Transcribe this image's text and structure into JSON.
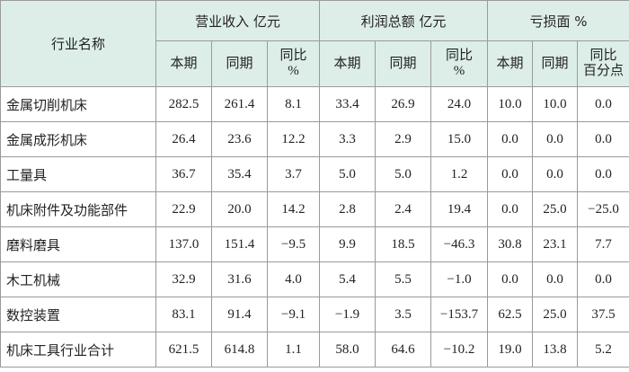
{
  "table": {
    "corner": "行业名称",
    "groups": [
      "营业收入 亿元",
      "利润总额 亿元",
      "亏损面 %"
    ],
    "subheaders": [
      [
        [
          "本期"
        ],
        [
          "同期"
        ],
        [
          "同比",
          "%"
        ]
      ],
      [
        [
          "本期"
        ],
        [
          "同期"
        ],
        [
          "同比",
          "%"
        ]
      ],
      [
        [
          "本期"
        ],
        [
          "同期"
        ],
        [
          "同比",
          "百分点"
        ]
      ]
    ],
    "rows": [
      [
        "金属切削机床",
        "282.5",
        "261.4",
        "8.1",
        "33.4",
        "26.9",
        "24.0",
        "10.0",
        "10.0",
        "0.0"
      ],
      [
        "金属成形机床",
        "26.4",
        "23.6",
        "12.2",
        "3.3",
        "2.9",
        "15.0",
        "0.0",
        "0.0",
        "0.0"
      ],
      [
        "工量具",
        "36.7",
        "35.4",
        "3.7",
        "5.0",
        "5.0",
        "1.2",
        "0.0",
        "0.0",
        "0.0"
      ],
      [
        "机床附件及功能部件",
        "22.9",
        "20.0",
        "14.2",
        "2.8",
        "2.4",
        "19.4",
        "0.0",
        "25.0",
        "−25.0"
      ],
      [
        "磨料磨具",
        "137.0",
        "151.4",
        "−9.5",
        "9.9",
        "18.5",
        "−46.3",
        "30.8",
        "23.1",
        "7.7"
      ],
      [
        "木工机械",
        "32.9",
        "31.6",
        "4.0",
        "5.4",
        "5.5",
        "−1.0",
        "0.0",
        "0.0",
        "0.0"
      ],
      [
        "数控装置",
        "83.1",
        "91.4",
        "−9.1",
        "−1.9",
        "3.5",
        "−153.7",
        "62.5",
        "25.0",
        "37.5"
      ],
      [
        "机床工具行业合计",
        "621.5",
        "614.8",
        "1.1",
        "58.0",
        "64.6",
        "−10.2",
        "19.0",
        "13.8",
        "5.2"
      ]
    ]
  }
}
